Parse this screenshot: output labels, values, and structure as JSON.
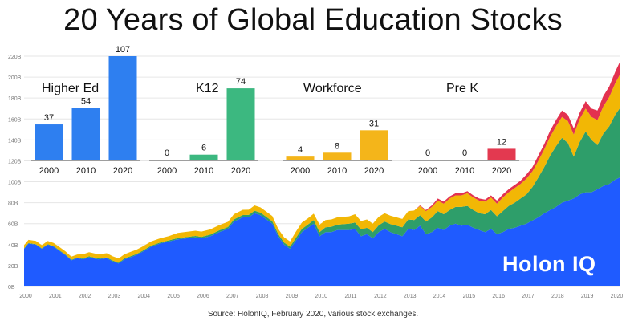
{
  "title": "20 Years of Global Education Stocks",
  "source": "Source: HolonIQ, February 2020, various stock exchanges.",
  "logo_text": "Holon IQ",
  "chart_data": [
    {
      "type": "area",
      "stacked": true,
      "ylim": [
        0,
        220
      ],
      "y_ticks": [
        {
          "value": 0,
          "label": "0B"
        },
        {
          "value": 20,
          "label": "20B"
        },
        {
          "value": 40,
          "label": "40B"
        },
        {
          "value": 60,
          "label": "60B"
        },
        {
          "value": 80,
          "label": "80B"
        },
        {
          "value": 100,
          "label": "100B"
        },
        {
          "value": 120,
          "label": "120B"
        },
        {
          "value": 140,
          "label": "140B"
        },
        {
          "value": 160,
          "label": "160B"
        },
        {
          "value": 180,
          "label": "180B"
        },
        {
          "value": 200,
          "label": "200B"
        },
        {
          "value": 220,
          "label": "220B"
        }
      ],
      "x_ticks": [
        "2000",
        "2001",
        "2002",
        "2003",
        "2004",
        "2005",
        "2006",
        "2007",
        "2008",
        "2009",
        "2010",
        "2011",
        "2012",
        "2013",
        "2014",
        "2015",
        "2016",
        "2017",
        "2018",
        "2019",
        "2020"
      ],
      "x": [
        2000.0,
        2000.15,
        2000.4,
        2000.6,
        2000.8,
        2001.0,
        2001.2,
        2001.4,
        2001.6,
        2001.8,
        2002.0,
        2002.2,
        2002.5,
        2002.8,
        2003.0,
        2003.2,
        2003.4,
        2003.6,
        2003.8,
        2004.0,
        2004.3,
        2004.6,
        2004.9,
        2005.2,
        2005.5,
        2005.8,
        2006.0,
        2006.3,
        2006.6,
        2006.9,
        2007.1,
        2007.4,
        2007.6,
        2007.8,
        2008.0,
        2008.2,
        2008.4,
        2008.6,
        2008.8,
        2009.0,
        2009.2,
        2009.4,
        2009.6,
        2009.8,
        2010.0,
        2010.2,
        2010.4,
        2010.6,
        2010.8,
        2011.0,
        2011.2,
        2011.4,
        2011.6,
        2011.8,
        2012.0,
        2012.2,
        2012.4,
        2012.6,
        2012.8,
        2013.0,
        2013.2,
        2013.4,
        2013.6,
        2013.8,
        2014.0,
        2014.2,
        2014.4,
        2014.6,
        2014.8,
        2015.0,
        2015.2,
        2015.4,
        2015.6,
        2015.8,
        2016.0,
        2016.2,
        2016.4,
        2016.6,
        2016.8,
        2017.0,
        2017.2,
        2017.4,
        2017.6,
        2017.8,
        2018.0,
        2018.2,
        2018.4,
        2018.6,
        2018.8,
        2019.0,
        2019.2,
        2019.4,
        2019.6,
        2019.8,
        2020.0,
        2020.15
      ],
      "series": [
        {
          "color": "#1f5bff",
          "values": [
            36,
            41,
            40,
            36,
            40,
            38,
            34,
            30,
            25,
            27,
            26,
            28,
            26,
            27,
            24,
            22,
            26,
            28,
            30,
            33,
            38,
            41,
            43,
            45,
            46,
            47,
            46,
            48,
            52,
            55,
            62,
            66,
            66,
            70,
            68,
            64,
            60,
            48,
            40,
            36,
            44,
            52,
            56,
            60,
            48,
            52,
            52,
            54,
            54,
            54,
            55,
            48,
            50,
            46,
            52,
            55,
            52,
            50,
            48,
            55,
            54,
            58,
            50,
            52,
            56,
            54,
            58,
            60,
            58,
            59,
            56,
            54,
            52,
            55,
            50,
            52,
            55,
            56,
            58,
            60,
            63,
            66,
            70,
            73,
            76,
            80,
            82,
            84,
            88,
            90,
            90,
            93,
            96,
            98,
            102,
            104
          ]
        },
        {
          "color": "#2e9e6a",
          "values": [
            0.5,
            0.5,
            0.5,
            0.5,
            0.5,
            0.6,
            0.6,
            0.6,
            0.6,
            0.6,
            0.8,
            0.8,
            0.8,
            0.8,
            0.8,
            0.8,
            0.9,
            1,
            1,
            1,
            1,
            1,
            1.1,
            1.2,
            1.2,
            1.3,
            1.4,
            1.5,
            1.6,
            1.8,
            2,
            2.2,
            2.3,
            2.4,
            2.5,
            2.4,
            2.2,
            2,
            2,
            2,
            2.5,
            3,
            3,
            3.5,
            4,
            4.5,
            5,
            5,
            5.5,
            6,
            6,
            6.5,
            6,
            6,
            6.5,
            7,
            7.5,
            8,
            8.5,
            9,
            9.5,
            10,
            12,
            14,
            16,
            15,
            15,
            16,
            18,
            18,
            17,
            16,
            17,
            18,
            17,
            20,
            22,
            24,
            26,
            28,
            32,
            38,
            44,
            52,
            58,
            62,
            55,
            40,
            50,
            58,
            50,
            42,
            50,
            55,
            62,
            66
          ]
        },
        {
          "color": "#f2b705",
          "values": [
            3,
            3,
            3,
            3,
            3,
            3,
            3,
            3,
            3,
            3,
            4,
            4,
            4,
            4,
            4,
            4,
            4,
            4,
            4,
            4,
            4,
            4,
            4,
            5,
            5,
            5,
            5,
            5,
            5,
            5,
            5,
            5,
            5,
            5,
            5,
            5,
            5,
            5,
            5,
            5,
            6,
            6,
            6,
            6,
            7,
            7,
            7,
            7,
            7,
            7,
            8,
            8,
            8,
            8,
            8,
            8,
            8,
            8,
            8,
            8,
            9,
            9,
            10,
            10,
            10,
            10,
            11,
            11,
            11,
            12,
            12,
            12,
            12,
            12,
            12,
            13,
            13,
            14,
            14,
            15,
            15,
            16,
            17,
            18,
            19,
            20,
            21,
            21,
            22,
            22,
            22,
            24,
            26,
            28,
            30,
            32
          ]
        },
        {
          "color": "#e3324f",
          "values": [
            0,
            0,
            0,
            0,
            0,
            0,
            0,
            0,
            0,
            0,
            0,
            0,
            0,
            0,
            0,
            0,
            0,
            0,
            0,
            0,
            0,
            0,
            0,
            0,
            0,
            0,
            0,
            0,
            0,
            0,
            0,
            0,
            0,
            0,
            0,
            0,
            0,
            0,
            0,
            0,
            0,
            0,
            0,
            0,
            0,
            0,
            0,
            0,
            0,
            0,
            0,
            0,
            0,
            0,
            0,
            0,
            0,
            0,
            0,
            0,
            0,
            0.5,
            1,
            1.5,
            2,
            2,
            2,
            2,
            2,
            2,
            2,
            2,
            2,
            2,
            3,
            3,
            3,
            3,
            3,
            4,
            4,
            5,
            5,
            6,
            6,
            6,
            6,
            6,
            6,
            7,
            8,
            9,
            10,
            10,
            11,
            12
          ]
        }
      ]
    },
    {
      "type": "bar",
      "title": "Higher Ed",
      "categories": [
        "2000",
        "2010",
        "2020"
      ],
      "values": [
        37,
        54,
        107
      ],
      "labels": [
        "37",
        "54",
        "107"
      ],
      "color": "#2e7ff0"
    },
    {
      "type": "bar",
      "title": "K12",
      "categories": [
        "2000",
        "2010",
        "2020"
      ],
      "values": [
        0,
        6,
        74
      ],
      "labels": [
        "0",
        "6",
        "74"
      ],
      "color": "#3cb880"
    },
    {
      "type": "bar",
      "title": "Workforce",
      "categories": [
        "2000",
        "2010",
        "2020"
      ],
      "values": [
        4,
        8,
        31
      ],
      "labels": [
        "4",
        "8",
        "31"
      ],
      "color": "#f4b51a"
    },
    {
      "type": "bar",
      "title": "Pre K",
      "categories": [
        "2000",
        "2010",
        "2020"
      ],
      "values": [
        0,
        0,
        12
      ],
      "labels": [
        "0",
        "0",
        "12"
      ],
      "color": "#e33950"
    }
  ]
}
